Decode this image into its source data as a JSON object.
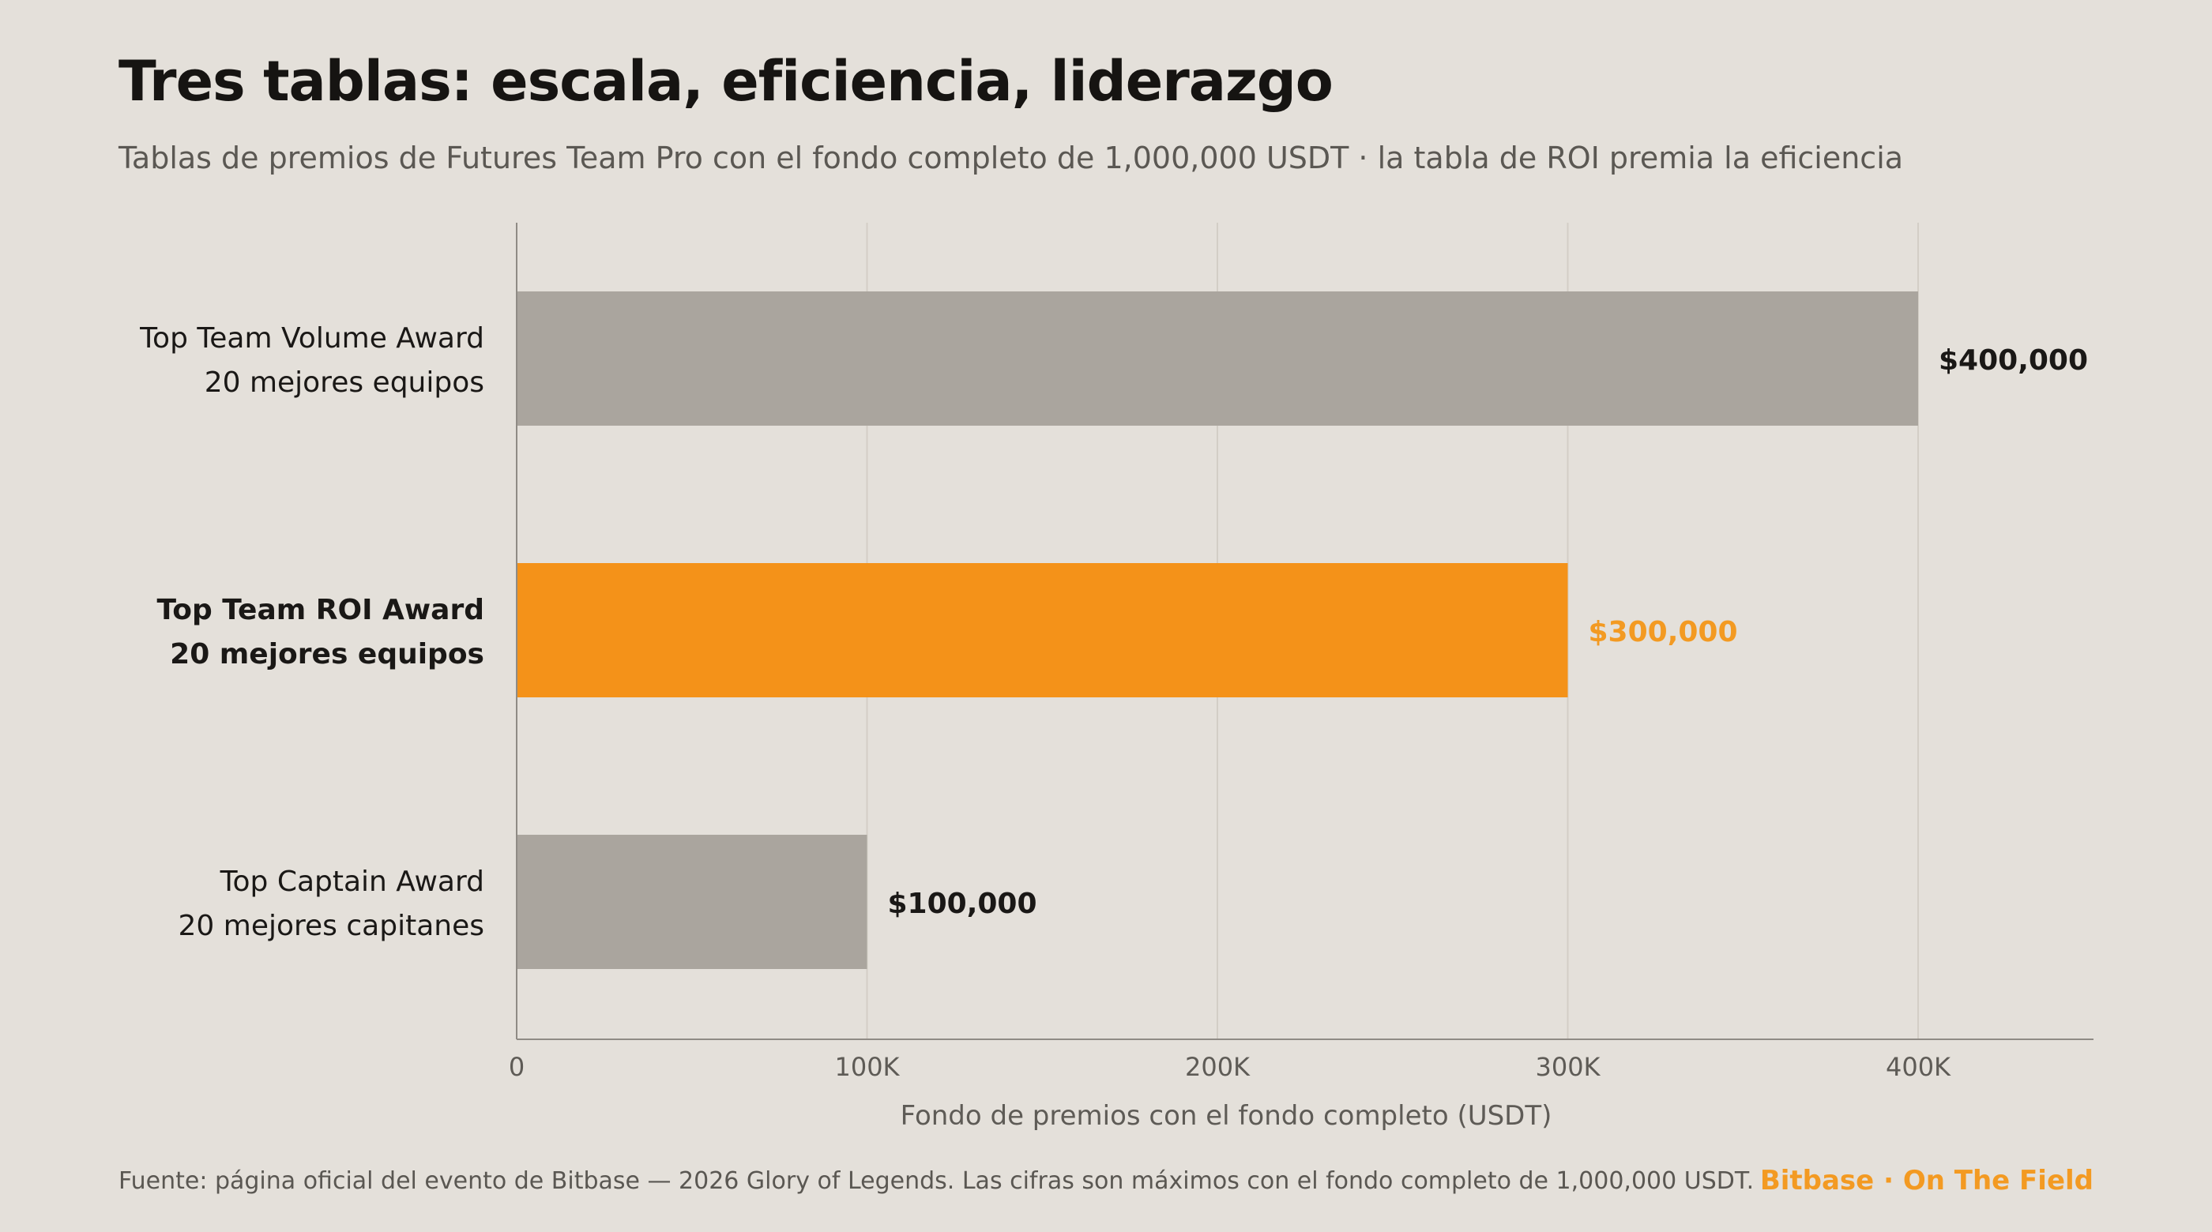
{
  "header": {
    "title": "Tres tablas: escala, eficiencia, liderazgo",
    "subtitle": "Tablas de premios de Futures Team Pro con el fondo completo de 1,000,000 USDT · la tabla de ROI premia la eficiencia"
  },
  "chart_data": {
    "type": "bar",
    "orientation": "horizontal",
    "categories": [
      {
        "name": "Top Team Volume Award",
        "sub": "20 mejores equipos",
        "highlight": false
      },
      {
        "name": "Top Team ROI Award",
        "sub": "20 mejores equipos",
        "highlight": true
      },
      {
        "name": "Top Captain Award",
        "sub": "20 mejores capitanes",
        "highlight": false
      }
    ],
    "values": [
      400000,
      300000,
      100000
    ],
    "value_labels": [
      "$400,000",
      "$300,000",
      "$100,000"
    ],
    "xlabel": "Fondo de premios con el fondo completo (USDT)",
    "ylabel": "",
    "xlim": [
      0,
      450000
    ],
    "xticks": [
      0,
      100000,
      200000,
      300000,
      400000
    ],
    "xtick_labels": [
      "0",
      "100K",
      "200K",
      "300K",
      "400K"
    ],
    "grid": "vertical",
    "colors": {
      "default_bar": "#aaa59e",
      "highlight_bar": "#f49219",
      "highlight_label": "#f39a22",
      "text": "#1a1816",
      "grid": "#d3cec6",
      "axis": "#8f8b85",
      "tick_text": "#5e5b56"
    }
  },
  "footer": {
    "source": "Fuente: página oficial del evento de Bitbase — 2026 Glory of Legends. Las cifras son máximos con el fondo completo de 1,000,000 USDT.",
    "brand": "Bitbase · On The Field"
  }
}
